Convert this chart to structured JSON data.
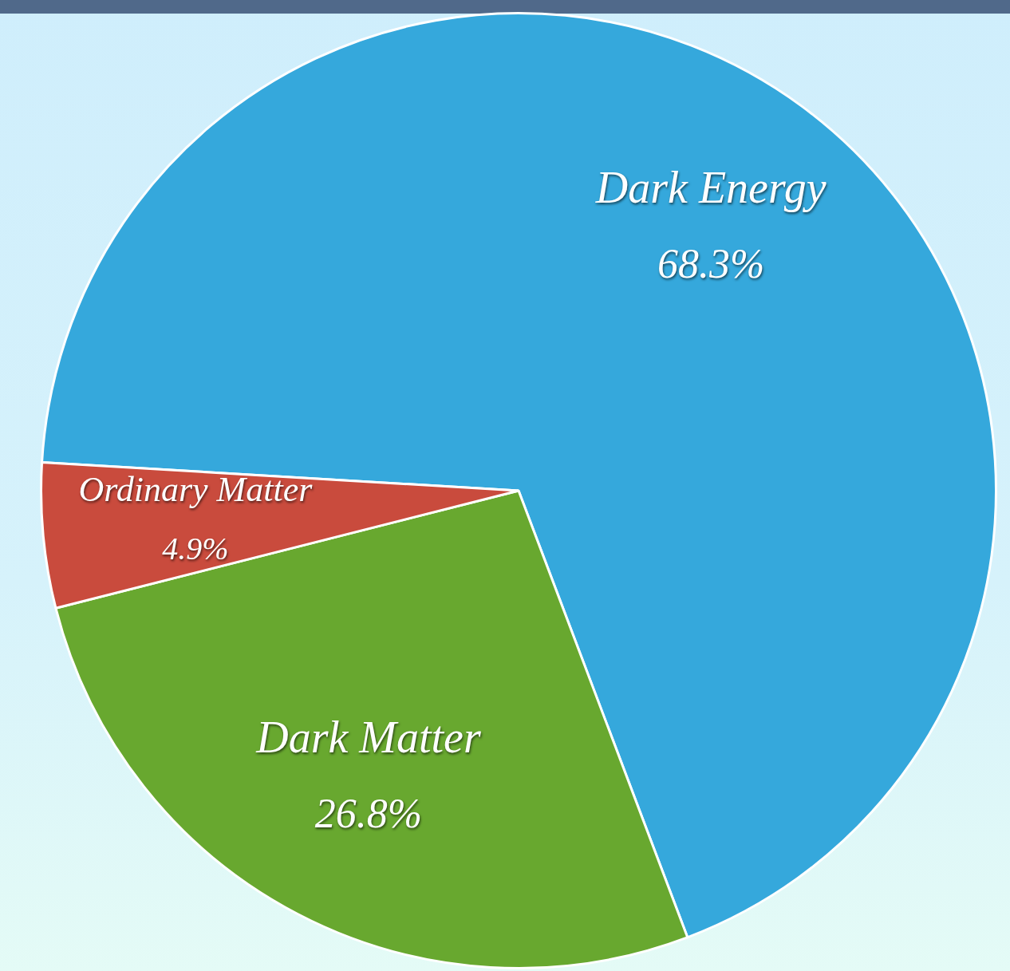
{
  "chart_data": {
    "type": "pie",
    "categories": [
      "Dark Energy",
      "Dark Matter",
      "Ordinary Matter"
    ],
    "values": [
      68.3,
      26.8,
      4.9
    ],
    "colors": [
      "#35a8dc",
      "#68a82f",
      "#c94b3d"
    ],
    "value_labels": [
      "68.3%",
      "26.8%",
      "4.9%"
    ]
  }
}
